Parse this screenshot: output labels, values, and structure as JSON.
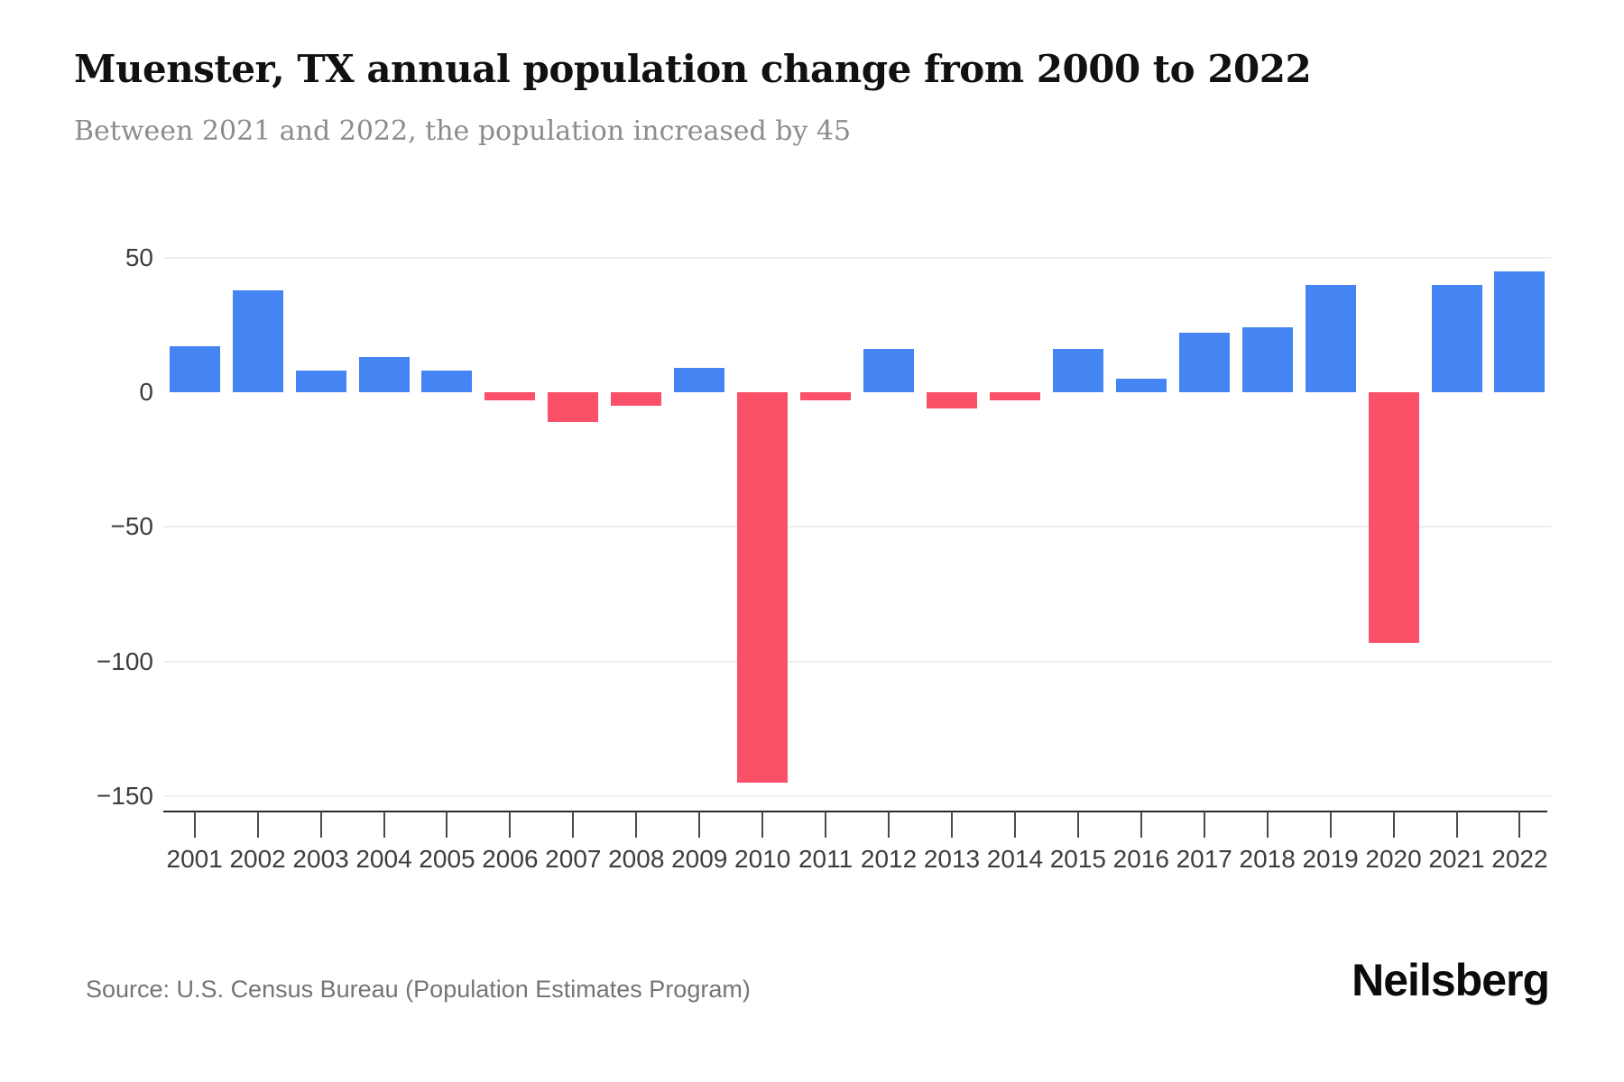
{
  "header": {
    "title": "Muenster, TX annual population change from 2000 to 2022",
    "subtitle": "Between 2021 and 2022, the population increased by 45"
  },
  "footer": {
    "source": "Source: U.S. Census Bureau (Population Estimates Program)",
    "logo": "Neilsberg"
  },
  "chart_data": {
    "type": "bar",
    "title": "Muenster, TX annual population change from 2000 to 2022",
    "subtitle": "Between 2021 and 2022, the population increased by 45",
    "categories": [
      "2001",
      "2002",
      "2003",
      "2004",
      "2005",
      "2006",
      "2007",
      "2008",
      "2009",
      "2010",
      "2011",
      "2012",
      "2013",
      "2014",
      "2015",
      "2016",
      "2017",
      "2018",
      "2019",
      "2020",
      "2021",
      "2022"
    ],
    "values": [
      17,
      38,
      8,
      13,
      8,
      -3,
      -11,
      -5,
      9,
      -145,
      -3,
      16,
      -6,
      -3,
      16,
      5,
      22,
      24,
      40,
      -93,
      40,
      45
    ],
    "xlabel": "",
    "ylabel": "",
    "ylim": [
      -150,
      50
    ],
    "yticks": [
      50,
      0,
      -50,
      -100,
      -150
    ],
    "grid_values": [
      50,
      -50,
      -100,
      -150
    ],
    "legend": "none",
    "grid": "horizontal-light",
    "colors": {
      "positive": "#4484F3",
      "negative": "#FB5168",
      "gridline": "#efefef",
      "axis": "#2b2b2b",
      "text": "#3d3d3d"
    }
  }
}
